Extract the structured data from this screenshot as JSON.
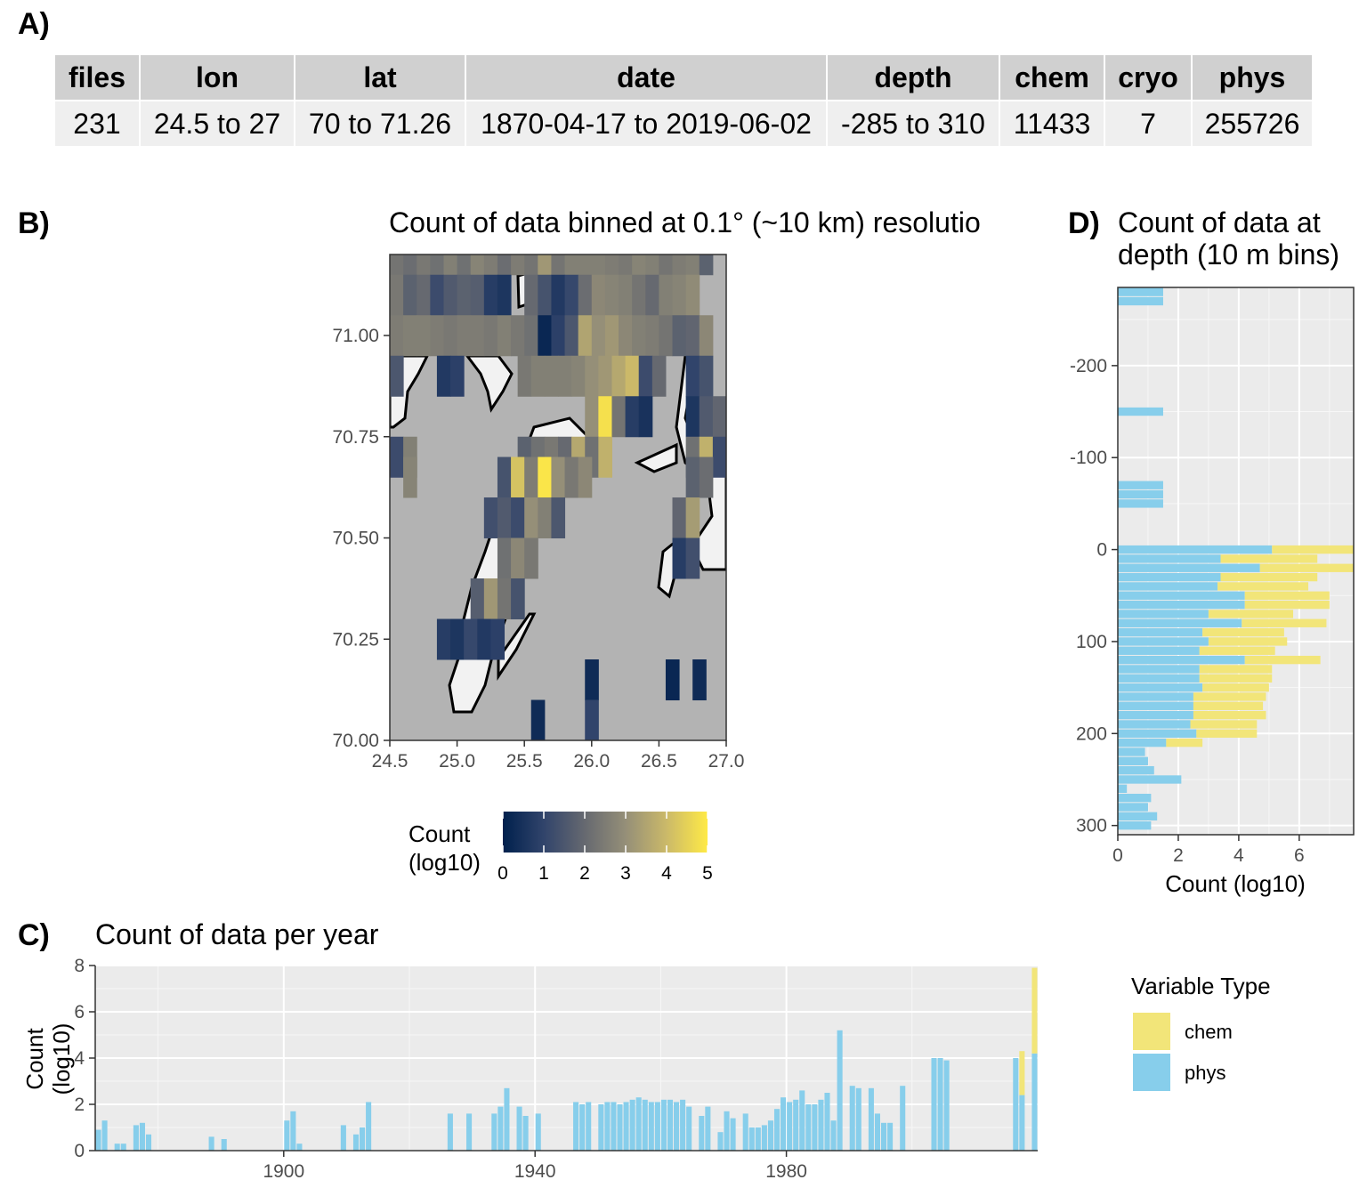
{
  "panels": {
    "a_label": "A)",
    "b_label": "B)",
    "c_label": "C)",
    "d_label": "D)"
  },
  "table": {
    "headers": [
      "files",
      "lon",
      "lat",
      "date",
      "depth",
      "chem",
      "cryo",
      "phys"
    ],
    "row": [
      "231",
      "24.5 to 27",
      "70 to 71.26",
      "1870-04-17 to 2019-06-02",
      "-285 to 310",
      "11433",
      "7",
      "255726"
    ]
  },
  "colors": {
    "chem": "#f2e579",
    "phys": "#87ceeb",
    "land": "#b3b3b3",
    "panel_bg": "#ebebeb"
  },
  "chart_data": [
    {
      "id": "map",
      "type": "heatmap",
      "title": "Count of data binned at 0.1° (~10 km) resolutio",
      "xlim": [
        24.5,
        27.0
      ],
      "ylim": [
        70.0,
        71.2
      ],
      "xticks": [
        "24.5",
        "25.0",
        "25.5",
        "26.0",
        "26.5",
        "27.0"
      ],
      "yticks": [
        "70.00",
        "70.25",
        "70.50",
        "70.75",
        "71.00"
      ],
      "legend_title": [
        "Count",
        "(log10)"
      ],
      "legend_ticks": [
        "0",
        "1",
        "2",
        "3",
        "4",
        "5"
      ],
      "colorscale": [
        "#00204d",
        "#31446b",
        "#666970",
        "#958f78",
        "#cbb969",
        "#ffea46"
      ],
      "cells": [
        {
          "x": 24.5,
          "y": 71.15,
          "v": 2.3
        },
        {
          "x": 24.6,
          "y": 71.15,
          "v": 2.1
        },
        {
          "x": 24.7,
          "y": 71.15,
          "v": 2.4
        },
        {
          "x": 24.8,
          "y": 71.15,
          "v": 2.2
        },
        {
          "x": 24.9,
          "y": 71.15,
          "v": 2.6
        },
        {
          "x": 25.0,
          "y": 71.15,
          "v": 2.2
        },
        {
          "x": 25.1,
          "y": 71.15,
          "v": 2.7
        },
        {
          "x": 25.2,
          "y": 71.15,
          "v": 2.5
        },
        {
          "x": 25.3,
          "y": 71.15,
          "v": 2.1
        },
        {
          "x": 25.4,
          "y": 71.15,
          "v": 2.5
        },
        {
          "x": 25.5,
          "y": 71.15,
          "v": 2.3
        },
        {
          "x": 25.6,
          "y": 71.15,
          "v": 3.2
        },
        {
          "x": 25.7,
          "y": 71.15,
          "v": 2.3
        },
        {
          "x": 25.8,
          "y": 71.15,
          "v": 2.6
        },
        {
          "x": 25.9,
          "y": 71.15,
          "v": 2.6
        },
        {
          "x": 26.0,
          "y": 71.15,
          "v": 2.6
        },
        {
          "x": 26.1,
          "y": 71.15,
          "v": 2.5
        },
        {
          "x": 26.2,
          "y": 71.15,
          "v": 2.4
        },
        {
          "x": 26.3,
          "y": 71.15,
          "v": 2.7
        },
        {
          "x": 26.4,
          "y": 71.15,
          "v": 2.6
        },
        {
          "x": 26.5,
          "y": 71.15,
          "v": 2.3
        },
        {
          "x": 26.6,
          "y": 71.15,
          "v": 2.5
        },
        {
          "x": 26.7,
          "y": 71.15,
          "v": 2.6
        },
        {
          "x": 26.8,
          "y": 71.15,
          "v": 1.8
        },
        {
          "x": 24.5,
          "y": 71.05,
          "v": 2.4
        },
        {
          "x": 24.6,
          "y": 71.05,
          "v": 1.8
        },
        {
          "x": 24.7,
          "y": 71.05,
          "v": 2.0
        },
        {
          "x": 24.8,
          "y": 71.05,
          "v": 1.2
        },
        {
          "x": 24.9,
          "y": 71.05,
          "v": 1.6
        },
        {
          "x": 25.0,
          "y": 71.05,
          "v": 1.8
        },
        {
          "x": 25.1,
          "y": 71.05,
          "v": 1.7
        },
        {
          "x": 25.2,
          "y": 71.05,
          "v": 0.8
        },
        {
          "x": 25.3,
          "y": 71.05,
          "v": 0.6
        },
        {
          "x": 25.5,
          "y": 71.05,
          "v": 2.0
        },
        {
          "x": 25.6,
          "y": 71.05,
          "v": 1.4
        },
        {
          "x": 25.7,
          "y": 71.05,
          "v": 0.7
        },
        {
          "x": 25.8,
          "y": 71.05,
          "v": 1.1
        },
        {
          "x": 25.9,
          "y": 71.05,
          "v": 2.1
        },
        {
          "x": 26.0,
          "y": 71.05,
          "v": 2.8
        },
        {
          "x": 26.1,
          "y": 71.05,
          "v": 2.7
        },
        {
          "x": 26.2,
          "y": 71.05,
          "v": 2.6
        },
        {
          "x": 26.3,
          "y": 71.05,
          "v": 2.3
        },
        {
          "x": 26.4,
          "y": 71.05,
          "v": 2.0
        },
        {
          "x": 26.5,
          "y": 71.05,
          "v": 2.6
        },
        {
          "x": 26.6,
          "y": 71.05,
          "v": 2.7
        },
        {
          "x": 26.7,
          "y": 71.05,
          "v": 2.9
        },
        {
          "x": 24.5,
          "y": 70.95,
          "v": 2.5
        },
        {
          "x": 24.6,
          "y": 70.95,
          "v": 2.6
        },
        {
          "x": 24.7,
          "y": 70.95,
          "v": 2.6
        },
        {
          "x": 24.8,
          "y": 70.95,
          "v": 2.5
        },
        {
          "x": 24.9,
          "y": 70.95,
          "v": 2.4
        },
        {
          "x": 25.0,
          "y": 70.95,
          "v": 2.5
        },
        {
          "x": 25.1,
          "y": 70.95,
          "v": 2.5
        },
        {
          "x": 25.2,
          "y": 70.95,
          "v": 2.4
        },
        {
          "x": 25.3,
          "y": 70.95,
          "v": 2.6
        },
        {
          "x": 25.4,
          "y": 70.95,
          "v": 2.4
        },
        {
          "x": 25.5,
          "y": 70.95,
          "v": 2.2
        },
        {
          "x": 25.6,
          "y": 70.95,
          "v": 0.2
        },
        {
          "x": 25.7,
          "y": 70.95,
          "v": 0.9
        },
        {
          "x": 25.8,
          "y": 70.95,
          "v": 1.5
        },
        {
          "x": 25.9,
          "y": 70.95,
          "v": 3.5
        },
        {
          "x": 26.0,
          "y": 70.95,
          "v": 3.0
        },
        {
          "x": 26.1,
          "y": 70.95,
          "v": 3.2
        },
        {
          "x": 26.2,
          "y": 70.95,
          "v": 2.8
        },
        {
          "x": 26.3,
          "y": 70.95,
          "v": 2.6
        },
        {
          "x": 26.4,
          "y": 70.95,
          "v": 2.5
        },
        {
          "x": 26.5,
          "y": 70.95,
          "v": 2.3
        },
        {
          "x": 26.6,
          "y": 70.95,
          "v": 1.8
        },
        {
          "x": 26.7,
          "y": 70.95,
          "v": 1.9
        },
        {
          "x": 26.8,
          "y": 70.95,
          "v": 2.8
        },
        {
          "x": 24.5,
          "y": 70.85,
          "v": 1.5
        },
        {
          "x": 24.85,
          "y": 70.85,
          "v": 0.7
        },
        {
          "x": 24.95,
          "y": 70.85,
          "v": 0.9
        },
        {
          "x": 25.45,
          "y": 70.85,
          "v": 2.4
        },
        {
          "x": 25.55,
          "y": 70.85,
          "v": 2.6
        },
        {
          "x": 25.65,
          "y": 70.85,
          "v": 2.6
        },
        {
          "x": 25.75,
          "y": 70.85,
          "v": 2.6
        },
        {
          "x": 25.85,
          "y": 70.85,
          "v": 2.7
        },
        {
          "x": 25.95,
          "y": 70.85,
          "v": 3.0
        },
        {
          "x": 26.05,
          "y": 70.85,
          "v": 3.2
        },
        {
          "x": 26.15,
          "y": 70.85,
          "v": 3.6
        },
        {
          "x": 26.25,
          "y": 70.85,
          "v": 4.0
        },
        {
          "x": 26.35,
          "y": 70.85,
          "v": 1.2
        },
        {
          "x": 26.45,
          "y": 70.85,
          "v": 2.0
        },
        {
          "x": 26.7,
          "y": 70.85,
          "v": 1.0
        },
        {
          "x": 26.8,
          "y": 70.85,
          "v": 1.4
        },
        {
          "x": 25.95,
          "y": 70.75,
          "v": 3.0
        },
        {
          "x": 26.05,
          "y": 70.75,
          "v": 4.8
        },
        {
          "x": 26.15,
          "y": 70.75,
          "v": 2.3
        },
        {
          "x": 26.25,
          "y": 70.75,
          "v": 0.8
        },
        {
          "x": 26.35,
          "y": 70.75,
          "v": 0.5
        },
        {
          "x": 26.7,
          "y": 70.75,
          "v": 0.6
        },
        {
          "x": 26.8,
          "y": 70.75,
          "v": 1.6
        },
        {
          "x": 26.9,
          "y": 70.75,
          "v": 1.9
        },
        {
          "x": 24.5,
          "y": 70.65,
          "v": 1.2
        },
        {
          "x": 24.6,
          "y": 70.65,
          "v": 2.6
        },
        {
          "x": 25.45,
          "y": 70.65,
          "v": 1.8
        },
        {
          "x": 25.55,
          "y": 70.65,
          "v": 2.2
        },
        {
          "x": 25.65,
          "y": 70.65,
          "v": 2.4
        },
        {
          "x": 25.75,
          "y": 70.65,
          "v": 2.0
        },
        {
          "x": 25.85,
          "y": 70.65,
          "v": 3.6
        },
        {
          "x": 25.95,
          "y": 70.65,
          "v": 2.2
        },
        {
          "x": 26.05,
          "y": 70.65,
          "v": 3.8
        },
        {
          "x": 26.7,
          "y": 70.65,
          "v": 2.2
        },
        {
          "x": 26.8,
          "y": 70.65,
          "v": 3.8
        },
        {
          "x": 26.9,
          "y": 70.65,
          "v": 1.2
        },
        {
          "x": 24.6,
          "y": 70.6,
          "v": 2.7
        },
        {
          "x": 25.3,
          "y": 70.6,
          "v": 1.4
        },
        {
          "x": 25.4,
          "y": 70.6,
          "v": 4.2
        },
        {
          "x": 25.5,
          "y": 70.6,
          "v": 2.5
        },
        {
          "x": 25.6,
          "y": 70.6,
          "v": 4.9
        },
        {
          "x": 25.7,
          "y": 70.6,
          "v": 3.0
        },
        {
          "x": 25.8,
          "y": 70.6,
          "v": 2.4
        },
        {
          "x": 25.9,
          "y": 70.6,
          "v": 2.8
        },
        {
          "x": 26.7,
          "y": 70.6,
          "v": 1.8
        },
        {
          "x": 26.8,
          "y": 70.6,
          "v": 2.1
        },
        {
          "x": 25.2,
          "y": 70.5,
          "v": 1.3
        },
        {
          "x": 25.3,
          "y": 70.5,
          "v": 1.6
        },
        {
          "x": 25.4,
          "y": 70.5,
          "v": 1.2
        },
        {
          "x": 25.5,
          "y": 70.5,
          "v": 3.0
        },
        {
          "x": 25.6,
          "y": 70.5,
          "v": 2.6
        },
        {
          "x": 25.7,
          "y": 70.5,
          "v": 1.5
        },
        {
          "x": 26.6,
          "y": 70.5,
          "v": 1.9
        },
        {
          "x": 26.7,
          "y": 70.5,
          "v": 3.3
        },
        {
          "x": 25.3,
          "y": 70.4,
          "v": 2.2
        },
        {
          "x": 25.4,
          "y": 70.4,
          "v": 2.8
        },
        {
          "x": 25.5,
          "y": 70.4,
          "v": 2.4
        },
        {
          "x": 26.6,
          "y": 70.4,
          "v": 0.8
        },
        {
          "x": 26.7,
          "y": 70.4,
          "v": 1.3
        },
        {
          "x": 25.1,
          "y": 70.3,
          "v": 1.7
        },
        {
          "x": 25.2,
          "y": 70.3,
          "v": 3.2
        },
        {
          "x": 25.3,
          "y": 70.3,
          "v": 2.3
        },
        {
          "x": 25.4,
          "y": 70.3,
          "v": 1.4
        },
        {
          "x": 24.85,
          "y": 70.2,
          "v": 0.8
        },
        {
          "x": 24.95,
          "y": 70.2,
          "v": 0.6
        },
        {
          "x": 25.05,
          "y": 70.2,
          "v": 1.1
        },
        {
          "x": 25.15,
          "y": 70.2,
          "v": 0.7
        },
        {
          "x": 25.25,
          "y": 70.2,
          "v": 0.9
        },
        {
          "x": 25.95,
          "y": 70.1,
          "v": 0.3
        },
        {
          "x": 26.55,
          "y": 70.1,
          "v": 0.2
        },
        {
          "x": 26.75,
          "y": 70.1,
          "v": 0.3
        },
        {
          "x": 25.55,
          "y": 70.0,
          "v": 0.3
        },
        {
          "x": 25.95,
          "y": 70.0,
          "v": 1.0
        }
      ]
    },
    {
      "id": "years",
      "type": "bar",
      "title": "Count of data per year",
      "ylabel": [
        "Count",
        "(log10)"
      ],
      "xlim": [
        1870,
        2020
      ],
      "ylim": [
        0,
        8
      ],
      "xticks": [
        "1900",
        "1940",
        "1980"
      ],
      "yticks": [
        "0",
        "2",
        "4",
        "6",
        "8"
      ],
      "legend_title": "Variable Type",
      "legend": [
        "chem",
        "phys"
      ],
      "series": [
        {
          "name": "phys",
          "x": [
            1870,
            1871,
            1873,
            1874,
            1876,
            1877,
            1878,
            1888,
            1890,
            1900,
            1901,
            1902,
            1909,
            1911,
            1912,
            1913,
            1926,
            1929,
            1933,
            1934,
            1935,
            1937,
            1938,
            1940,
            1946,
            1947,
            1948,
            1950,
            1951,
            1952,
            1953,
            1954,
            1955,
            1956,
            1957,
            1958,
            1959,
            1960,
            1961,
            1962,
            1963,
            1964,
            1966,
            1967,
            1969,
            1970,
            1971,
            1973,
            1974,
            1975,
            1976,
            1977,
            1978,
            1979,
            1980,
            1981,
            1982,
            1983,
            1984,
            1985,
            1986,
            1987,
            1988,
            1990,
            1991,
            1993,
            1994,
            1995,
            1996,
            1998,
            2003,
            2004,
            2005,
            2016,
            2017,
            2019
          ],
          "values": [
            0.9,
            1.3,
            0.3,
            0.3,
            1.1,
            1.2,
            0.7,
            0.6,
            0.5,
            1.3,
            1.7,
            0.3,
            1.1,
            0.7,
            1.0,
            2.1,
            1.6,
            1.6,
            1.6,
            1.9,
            2.7,
            1.9,
            1.5,
            1.6,
            2.1,
            2.0,
            2.1,
            2.0,
            2.1,
            2.1,
            2.0,
            2.1,
            2.2,
            2.3,
            2.2,
            2.1,
            2.1,
            2.2,
            2.2,
            2.1,
            2.2,
            1.9,
            1.5,
            1.9,
            0.8,
            1.7,
            1.4,
            1.6,
            1.0,
            1.0,
            1.1,
            1.3,
            1.8,
            2.3,
            2.1,
            2.2,
            2.6,
            2.0,
            2.0,
            2.2,
            2.5,
            1.3,
            5.2,
            2.8,
            2.7,
            2.7,
            1.6,
            1.2,
            1.2,
            2.8,
            4.0,
            4.0,
            3.9,
            4.0,
            2.4,
            4.2
          ]
        },
        {
          "name": "chem",
          "x": [
            2017,
            2019
          ],
          "values": [
            1.9,
            3.7
          ]
        }
      ]
    },
    {
      "id": "depth",
      "type": "bar",
      "title": "Count of data at depth (10 m bins)",
      "xlabel": "Count (log10)",
      "xlim": [
        0,
        7.8
      ],
      "ylim": [
        -285,
        310
      ],
      "xticks": [
        "0",
        "2",
        "4",
        "6"
      ],
      "yticks": [
        "-200",
        "-100",
        "0",
        "100",
        "200",
        "300"
      ],
      "series": [
        {
          "name": "phys",
          "depth": [
            -280,
            -270,
            -150,
            -70,
            -60,
            -50,
            0,
            10,
            20,
            30,
            40,
            50,
            60,
            70,
            80,
            90,
            100,
            110,
            120,
            130,
            140,
            150,
            160,
            170,
            180,
            190,
            200,
            210,
            220,
            230,
            240,
            250,
            260,
            270,
            280,
            290,
            300
          ],
          "values": [
            1.5,
            1.5,
            1.5,
            1.5,
            1.5,
            1.5,
            5.1,
            3.4,
            4.7,
            3.4,
            3.3,
            4.2,
            4.2,
            3.0,
            4.1,
            2.8,
            3.0,
            2.7,
            4.2,
            2.7,
            2.7,
            2.8,
            2.5,
            2.5,
            2.5,
            2.4,
            2.6,
            1.6,
            0.9,
            1.0,
            1.2,
            2.1,
            0.3,
            1.1,
            1.0,
            1.3,
            1.1
          ]
        },
        {
          "name": "chem",
          "depth": [
            0,
            10,
            20,
            30,
            40,
            50,
            60,
            70,
            80,
            90,
            100,
            110,
            120,
            130,
            140,
            150,
            160,
            170,
            180,
            190,
            200,
            210
          ],
          "values": [
            7.8,
            6.6,
            7.8,
            6.6,
            6.3,
            7.0,
            7.0,
            5.8,
            6.9,
            5.5,
            5.6,
            5.2,
            6.7,
            5.1,
            5.1,
            5.0,
            4.9,
            4.8,
            4.9,
            4.6,
            4.6,
            2.8
          ]
        }
      ]
    }
  ]
}
